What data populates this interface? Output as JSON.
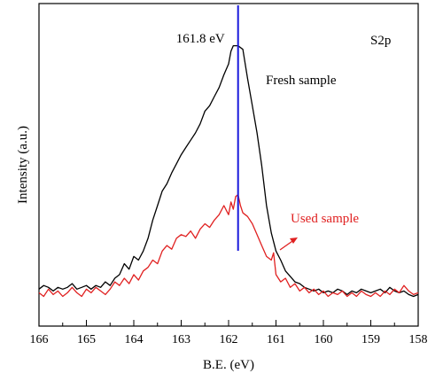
{
  "chart_data": {
    "type": "line",
    "title": "",
    "xlabel": "B.E. (eV)",
    "ylabel": "Intensity (a.u.)",
    "xlim": [
      166,
      158
    ],
    "x_reversed": true,
    "y_ticks_shown": false,
    "xticks": [
      166,
      165,
      164,
      163,
      162,
      161,
      160,
      159,
      158
    ],
    "corner_label": "S2p",
    "marker": {
      "x": 161.8,
      "label": "161.8 eV",
      "color": "#1a1adb"
    },
    "annotations": [
      {
        "text": "Fresh sample",
        "color": "#000000"
      },
      {
        "text": "Used sample",
        "color": "#e02020",
        "has_arrow": true
      }
    ],
    "series": [
      {
        "name": "Fresh sample",
        "color": "#000000",
        "points": [
          [
            166.0,
            0.14
          ],
          [
            165.9,
            0.16
          ],
          [
            165.8,
            0.15
          ],
          [
            165.7,
            0.13
          ],
          [
            165.6,
            0.15
          ],
          [
            165.5,
            0.14
          ],
          [
            165.4,
            0.15
          ],
          [
            165.3,
            0.17
          ],
          [
            165.2,
            0.14
          ],
          [
            165.1,
            0.15
          ],
          [
            165.0,
            0.16
          ],
          [
            164.9,
            0.14
          ],
          [
            164.8,
            0.16
          ],
          [
            164.7,
            0.15
          ],
          [
            164.6,
            0.18
          ],
          [
            164.5,
            0.16
          ],
          [
            164.4,
            0.2
          ],
          [
            164.3,
            0.22
          ],
          [
            164.2,
            0.28
          ],
          [
            164.1,
            0.25
          ],
          [
            164.0,
            0.32
          ],
          [
            163.9,
            0.3
          ],
          [
            163.8,
            0.35
          ],
          [
            163.7,
            0.42
          ],
          [
            163.6,
            0.52
          ],
          [
            163.5,
            0.6
          ],
          [
            163.4,
            0.68
          ],
          [
            163.3,
            0.72
          ],
          [
            163.2,
            0.78
          ],
          [
            163.1,
            0.83
          ],
          [
            163.0,
            0.88
          ],
          [
            162.9,
            0.92
          ],
          [
            162.8,
            0.96
          ],
          [
            162.7,
            1.0
          ],
          [
            162.6,
            1.05
          ],
          [
            162.5,
            1.12
          ],
          [
            162.4,
            1.15
          ],
          [
            162.3,
            1.2
          ],
          [
            162.2,
            1.25
          ],
          [
            162.1,
            1.32
          ],
          [
            162.0,
            1.38
          ],
          [
            161.95,
            1.45
          ],
          [
            161.9,
            1.48
          ],
          [
            161.8,
            1.48
          ],
          [
            161.7,
            1.46
          ],
          [
            161.6,
            1.3
          ],
          [
            161.5,
            1.15
          ],
          [
            161.4,
            1.0
          ],
          [
            161.3,
            0.82
          ],
          [
            161.2,
            0.6
          ],
          [
            161.1,
            0.45
          ],
          [
            161.0,
            0.35
          ],
          [
            160.9,
            0.3
          ],
          [
            160.8,
            0.24
          ],
          [
            160.7,
            0.21
          ],
          [
            160.6,
            0.18
          ],
          [
            160.5,
            0.17
          ],
          [
            160.4,
            0.15
          ],
          [
            160.3,
            0.14
          ],
          [
            160.2,
            0.13
          ],
          [
            160.1,
            0.14
          ],
          [
            160.0,
            0.12
          ],
          [
            159.9,
            0.13
          ],
          [
            159.8,
            0.12
          ],
          [
            159.7,
            0.14
          ],
          [
            159.6,
            0.13
          ],
          [
            159.5,
            0.11
          ],
          [
            159.4,
            0.13
          ],
          [
            159.3,
            0.12
          ],
          [
            159.2,
            0.14
          ],
          [
            159.1,
            0.13
          ],
          [
            159.0,
            0.12
          ],
          [
            158.9,
            0.13
          ],
          [
            158.8,
            0.14
          ],
          [
            158.7,
            0.12
          ],
          [
            158.6,
            0.15
          ],
          [
            158.5,
            0.13
          ],
          [
            158.4,
            0.12
          ],
          [
            158.3,
            0.13
          ],
          [
            158.2,
            0.11
          ],
          [
            158.1,
            0.1
          ],
          [
            158.0,
            0.11
          ]
        ]
      },
      {
        "name": "Used sample",
        "color": "#e02020",
        "points": [
          [
            166.0,
            0.12
          ],
          [
            165.9,
            0.1
          ],
          [
            165.8,
            0.14
          ],
          [
            165.7,
            0.11
          ],
          [
            165.6,
            0.13
          ],
          [
            165.5,
            0.1
          ],
          [
            165.4,
            0.12
          ],
          [
            165.3,
            0.15
          ],
          [
            165.2,
            0.12
          ],
          [
            165.1,
            0.1
          ],
          [
            165.0,
            0.14
          ],
          [
            164.9,
            0.12
          ],
          [
            164.8,
            0.15
          ],
          [
            164.7,
            0.13
          ],
          [
            164.6,
            0.11
          ],
          [
            164.5,
            0.14
          ],
          [
            164.4,
            0.18
          ],
          [
            164.3,
            0.16
          ],
          [
            164.2,
            0.2
          ],
          [
            164.1,
            0.17
          ],
          [
            164.0,
            0.22
          ],
          [
            163.9,
            0.19
          ],
          [
            163.8,
            0.24
          ],
          [
            163.7,
            0.26
          ],
          [
            163.6,
            0.3
          ],
          [
            163.5,
            0.28
          ],
          [
            163.4,
            0.35
          ],
          [
            163.3,
            0.38
          ],
          [
            163.2,
            0.36
          ],
          [
            163.1,
            0.42
          ],
          [
            163.0,
            0.44
          ],
          [
            162.9,
            0.43
          ],
          [
            162.8,
            0.46
          ],
          [
            162.7,
            0.42
          ],
          [
            162.6,
            0.47
          ],
          [
            162.5,
            0.5
          ],
          [
            162.4,
            0.48
          ],
          [
            162.3,
            0.52
          ],
          [
            162.2,
            0.55
          ],
          [
            162.1,
            0.6
          ],
          [
            162.0,
            0.55
          ],
          [
            161.95,
            0.62
          ],
          [
            161.9,
            0.58
          ],
          [
            161.85,
            0.65
          ],
          [
            161.8,
            0.66
          ],
          [
            161.75,
            0.6
          ],
          [
            161.7,
            0.56
          ],
          [
            161.6,
            0.54
          ],
          [
            161.5,
            0.5
          ],
          [
            161.4,
            0.44
          ],
          [
            161.3,
            0.38
          ],
          [
            161.2,
            0.32
          ],
          [
            161.1,
            0.3
          ],
          [
            161.05,
            0.34
          ],
          [
            161.0,
            0.22
          ],
          [
            160.9,
            0.18
          ],
          [
            160.8,
            0.2
          ],
          [
            160.7,
            0.15
          ],
          [
            160.6,
            0.17
          ],
          [
            160.5,
            0.13
          ],
          [
            160.4,
            0.15
          ],
          [
            160.3,
            0.12
          ],
          [
            160.2,
            0.14
          ],
          [
            160.1,
            0.11
          ],
          [
            160.0,
            0.13
          ],
          [
            159.9,
            0.1
          ],
          [
            159.8,
            0.12
          ],
          [
            159.7,
            0.11
          ],
          [
            159.6,
            0.13
          ],
          [
            159.5,
            0.1
          ],
          [
            159.4,
            0.12
          ],
          [
            159.3,
            0.1
          ],
          [
            159.2,
            0.13
          ],
          [
            159.1,
            0.11
          ],
          [
            159.0,
            0.1
          ],
          [
            158.9,
            0.12
          ],
          [
            158.8,
            0.1
          ],
          [
            158.7,
            0.13
          ],
          [
            158.6,
            0.11
          ],
          [
            158.5,
            0.14
          ],
          [
            158.4,
            0.12
          ],
          [
            158.3,
            0.16
          ],
          [
            158.2,
            0.13
          ],
          [
            158.1,
            0.11
          ],
          [
            158.0,
            0.12
          ]
        ]
      }
    ]
  }
}
